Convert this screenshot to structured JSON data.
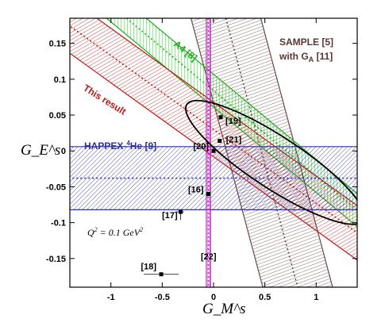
{
  "chart_data": {
    "type": "band-plot",
    "xlabel": "G_M^s",
    "ylabel": "G_E^s",
    "xlim": [
      -1.4,
      1.4
    ],
    "ylim": [
      -0.19,
      0.185
    ],
    "x_ticks": [
      -1,
      -0.5,
      0,
      0.5,
      1
    ],
    "x_tick_labels": [
      "-1",
      "-0.5",
      "0",
      "0.5",
      "1"
    ],
    "y_ticks": [
      0.15,
      0.1,
      0.05,
      0,
      -0.05,
      -0.1,
      -0.15
    ],
    "y_tick_labels": [
      "0.15",
      "0.1",
      "0.05",
      "0",
      "-0.05",
      "-0.1",
      "-0.15"
    ],
    "bands": [
      {
        "name": "SAMPLE [5] with G_A [11]",
        "label_line1": "SAMPLE  [5]",
        "label_line2_main": "with G",
        "label_line2_sub": "A",
        "label_line2_tail": " [11]",
        "type": "vertical",
        "center": [
          [
            0.12,
            0.185
          ],
          [
            0.82,
            -0.19
          ]
        ],
        "halfwidth": 0.34,
        "color": "#6b4848"
      },
      {
        "name": "A4 [8]",
        "label": "A4  [8]",
        "type": "sloped",
        "through": [
          0.0,
          0.084
        ],
        "slope": -0.119,
        "halfwidth": 0.023,
        "color": "#22aa22"
      },
      {
        "name": "This result",
        "label": "This result",
        "type": "sloped",
        "through": [
          0.0,
          0.03
        ],
        "slope": -0.103,
        "halfwidth": 0.038,
        "color": "#c01818"
      },
      {
        "name": "HAPPEX-4He [9]",
        "label_pre": "HAPPEX-",
        "label_sup": "4",
        "label_post": "He [9]",
        "type": "horizontal",
        "center": -0.038,
        "halfwidth": 0.044,
        "color": "#3030a0"
      },
      {
        "name": "[22]",
        "label": "[22]",
        "type": "vertical-narrow",
        "center": -0.05,
        "halfwidth": 0.02,
        "color": "#cc22cc"
      }
    ],
    "ellipse": {
      "center": [
        0.6,
        -0.016
      ],
      "semi_major": 0.86,
      "semi_minor": 0.024,
      "slope": -0.094,
      "color": "#000000"
    },
    "points": [
      {
        "label": "[19]",
        "x": 0.07,
        "y": 0.047
      },
      {
        "label": "[21]",
        "x": 0.06,
        "y": 0.014
      },
      {
        "label": "[20]",
        "x": 0.0,
        "y": 0.0
      },
      {
        "label": "[16]",
        "x": -0.05,
        "y": -0.06
      },
      {
        "label": "[17]",
        "x": -0.32,
        "y": -0.085
      },
      {
        "label": "[18]",
        "x": -0.51,
        "y": -0.172,
        "xerr": 0.17
      }
    ],
    "annotation": {
      "pre": "Q",
      "sup": "2",
      "post": " = 0.1 GeV",
      "sup2": "2"
    }
  }
}
